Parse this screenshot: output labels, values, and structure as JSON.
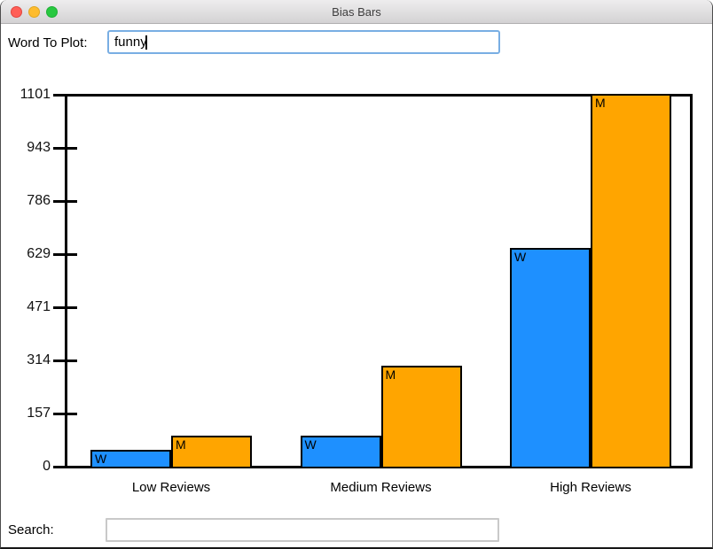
{
  "window": {
    "title": "Bias Bars"
  },
  "titlebar_buttons": {
    "close": "close-button",
    "minimize": "minimize-button",
    "zoom": "zoom-button"
  },
  "controls": {
    "word_label": "Word To Plot:",
    "word_value": "funny",
    "search_label": "Search:",
    "search_value": ""
  },
  "chart_data": {
    "type": "bar",
    "title": "",
    "xlabel": "",
    "ylabel": "",
    "categories": [
      "Low Reviews",
      "Medium Reviews",
      "High Reviews"
    ],
    "series": [
      {
        "name": "W",
        "color": "#1E90FF",
        "values": [
          47,
          90,
          645
        ]
      },
      {
        "name": "M",
        "color": "#FFA500",
        "values": [
          90,
          296,
          1101
        ]
      }
    ],
    "ylim": [
      0,
      1101
    ],
    "yticks": [
      0,
      157,
      314,
      471,
      629,
      786,
      943,
      1101
    ],
    "grid": false,
    "legend": "none",
    "bar_label_style": "series name inside top-left of each bar"
  }
}
